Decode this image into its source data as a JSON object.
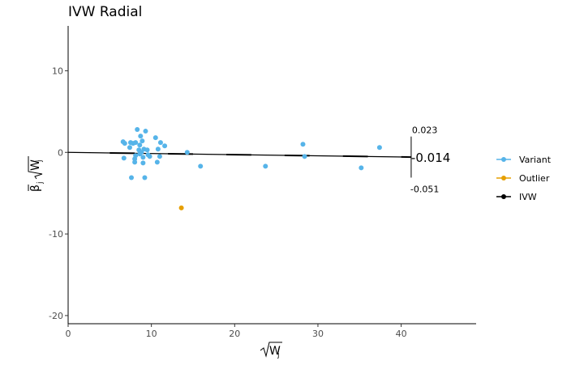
{
  "chart_data": {
    "type": "scatter",
    "title": "IVW Radial",
    "xlim": [
      0,
      49
    ],
    "ylim": [
      -21,
      15.5
    ],
    "x_ticks": [
      0,
      10,
      20,
      30,
      40
    ],
    "y_ticks": [
      -20,
      -10,
      0,
      10
    ],
    "grid": false,
    "legend_position": "right",
    "legend": [
      {
        "name": "Variant",
        "color": "#56B4E9"
      },
      {
        "name": "Outlier",
        "color": "#E69F00"
      },
      {
        "name": "IVW",
        "color": "#000000"
      }
    ],
    "series": [
      {
        "name": "Variant",
        "color": "#56B4E9",
        "points": [
          [
            6.6,
            1.3
          ],
          [
            6.8,
            1.1
          ],
          [
            6.7,
            -0.7
          ],
          [
            7.4,
            0.6
          ],
          [
            7.5,
            1.2
          ],
          [
            7.6,
            -3.1
          ],
          [
            7.8,
            1.1
          ],
          [
            8.0,
            -0.8
          ],
          [
            8.0,
            -1.2
          ],
          [
            8.1,
            1.2
          ],
          [
            8.1,
            -0.4
          ],
          [
            8.3,
            2.8
          ],
          [
            8.5,
            0.3
          ],
          [
            8.6,
            0.9
          ],
          [
            8.6,
            -0.2
          ],
          [
            8.7,
            2.0
          ],
          [
            8.8,
            0.0
          ],
          [
            8.9,
            1.4
          ],
          [
            9.0,
            -1.3
          ],
          [
            9.0,
            -0.6
          ],
          [
            9.1,
            0.4
          ],
          [
            9.2,
            -3.1
          ],
          [
            9.3,
            2.6
          ],
          [
            9.5,
            0.3
          ],
          [
            9.6,
            -0.3
          ],
          [
            9.8,
            -0.5
          ],
          [
            10.5,
            1.8
          ],
          [
            10.7,
            -1.2
          ],
          [
            10.8,
            0.4
          ],
          [
            11.0,
            -0.5
          ],
          [
            11.1,
            1.2
          ],
          [
            11.6,
            0.8
          ],
          [
            14.3,
            0.0
          ],
          [
            15.9,
            -1.7
          ],
          [
            23.7,
            -1.7
          ],
          [
            28.2,
            1.0
          ],
          [
            28.4,
            -0.5
          ],
          [
            35.2,
            -1.9
          ],
          [
            37.4,
            0.6
          ]
        ]
      },
      {
        "name": "Outlier",
        "color": "#E69F00",
        "points": [
          [
            13.6,
            -6.8
          ]
        ]
      }
    ],
    "ivw": {
      "slope": -0.014,
      "upper": 0.023,
      "lower": -0.051,
      "upper_label": "0.023",
      "estimate_label": "-0.014",
      "lower_label": "-0.051",
      "arc_radius": 41.2
    },
    "xlabel_main": "W",
    "xlabel_sub": "j",
    "ylabel_beta": "β",
    "ylabel_sub": "j",
    "ylabel_w": "W",
    "ylabel_wsub": "j"
  }
}
